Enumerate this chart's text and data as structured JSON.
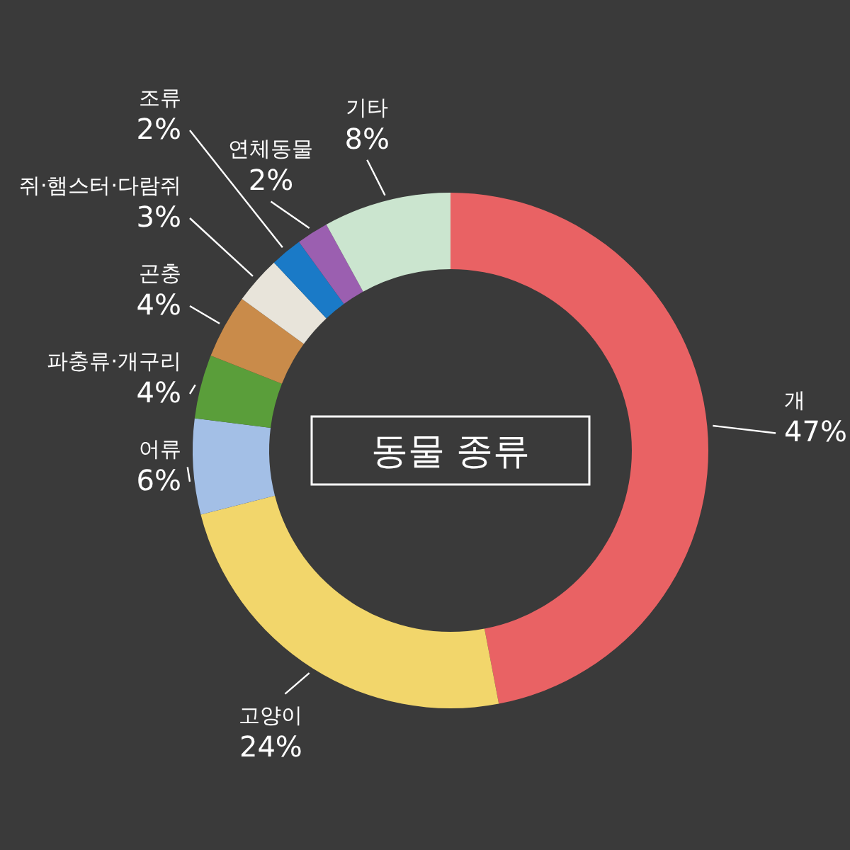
{
  "chart_data": {
    "type": "donut",
    "title": "동물 종류",
    "categories": [
      "개",
      "고양이",
      "어류",
      "파충류·개구리",
      "곤충",
      "쥐·햄스터·다람쥐",
      "조류",
      "연체동물",
      "기타"
    ],
    "values": [
      47,
      24,
      6,
      4,
      4,
      3,
      2,
      2,
      8
    ],
    "value_labels": [
      "47%",
      "24%",
      "6%",
      "4%",
      "4%",
      "3%",
      "2%",
      "2%",
      "8%"
    ],
    "colors": [
      "#e96264",
      "#f2d66b",
      "#a3bfe6",
      "#5a9e3a",
      "#c98b4a",
      "#e8e4da",
      "#1a7ac7",
      "#9b5fb0",
      "#cbe5cf"
    ]
  }
}
